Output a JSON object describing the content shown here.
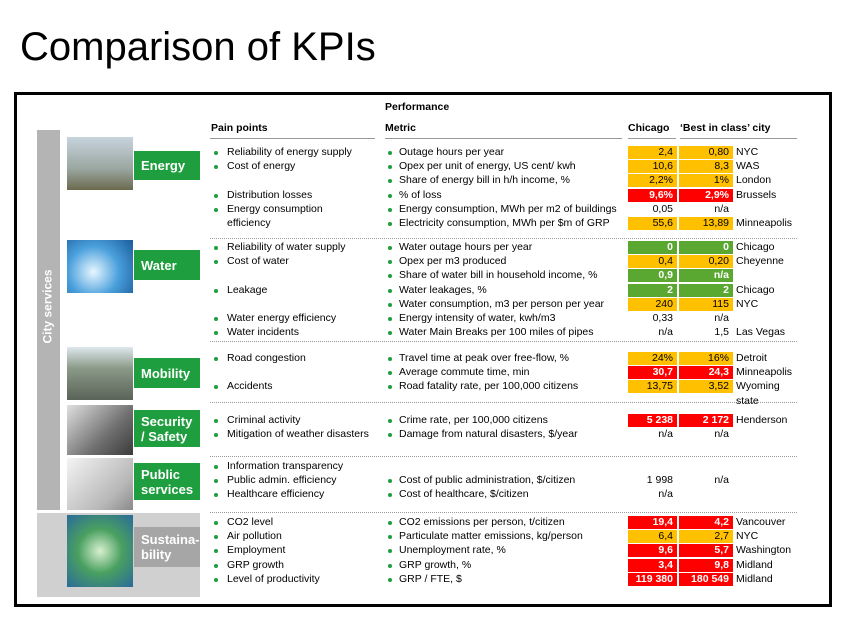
{
  "title": "Comparison of KPIs",
  "side_label": "City services",
  "headers": {
    "performance": "Performance",
    "pain_points": "Pain points",
    "metric": "Metric",
    "chicago": "Chicago",
    "best": "‘Best in class’ city"
  },
  "sections": [
    {
      "label": [
        "Energy"
      ],
      "color": "#1e9e3e",
      "rows": [
        {
          "pain": "Reliability of energy supply",
          "metric": "Outage hours per year",
          "chicago": "2,4",
          "best": "0,80",
          "city": "NYC",
          "chicago_fill": "#ffc000",
          "best_fill": "#ffc000"
        },
        {
          "pain": "Cost of energy",
          "metric": "Opex per unit of energy, US cent/ kwh",
          "chicago": "10,6",
          "best": "8,3",
          "city": "WAS",
          "chicago_fill": "#ffc000",
          "best_fill": "#ffc000"
        },
        {
          "metric": "Share of energy bill in h/h income, %",
          "chicago": "2,2%",
          "best": "1%",
          "city": "London",
          "chicago_fill": "#ffc000",
          "best_fill": "#ffc000"
        },
        {
          "pain": "Distribution losses",
          "metric": "% of loss",
          "chicago": "9,6%",
          "best": "2,9%",
          "city": "Brussels",
          "chicago_fill": "#ff0000",
          "best_fill": "#ff0000"
        },
        {
          "pain": [
            "Energy consumption",
            "efficiency"
          ],
          "metric": "Energy consumption, MWh per m2 of buildings",
          "chicago": "0,05",
          "best": "n/a"
        },
        {
          "metric": "Electricity consumption, MWh per $m of GRP",
          "chicago": "55,6",
          "best": "13,89",
          "city": "Minneapolis",
          "chicago_fill": "#ffc000",
          "best_fill": "#ffc000"
        }
      ]
    },
    {
      "label": [
        "Water"
      ],
      "color": "#1e9e3e",
      "rows": [
        {
          "pain": "Reliability of water supply",
          "metric": "Water outage hours per year",
          "chicago": "0",
          "best": "0",
          "city": "Chicago",
          "chicago_fill": "#5aa832",
          "best_fill": "#5aa832"
        },
        {
          "pain": "Cost of water",
          "metric": "Opex per m3 produced",
          "chicago": "0,4",
          "best": "0,20",
          "city": "Cheyenne",
          "chicago_fill": "#ffc000",
          "best_fill": "#ffc000"
        },
        {
          "metric": "Share of water bill in household income, %",
          "chicago": "0,9",
          "best": "n/a",
          "chicago_fill": "#5aa832",
          "best_fill": "#5aa832"
        },
        {
          "pain": "Leakage",
          "metric": "Water leakages, %",
          "chicago": "2",
          "best": "2",
          "city": "Chicago",
          "chicago_fill": "#5aa832",
          "best_fill": "#5aa832"
        },
        {
          "metric": "Water consumption, m3 per person per year",
          "chicago": "240",
          "best": "115",
          "city": "NYC",
          "chicago_fill": "#ffc000",
          "best_fill": "#ffc000"
        },
        {
          "pain": "Water energy efficiency",
          "metric": "Energy intensity of water, kwh/m3",
          "chicago": "0,33",
          "best": "n/a"
        },
        {
          "pain": "Water incidents",
          "metric": "Water Main Breaks per 100 miles of pipes",
          "chicago": "n/a",
          "best": "1,5",
          "city": "Las Vegas"
        }
      ]
    },
    {
      "label": [
        "Mobility"
      ],
      "color": "#1e9e3e",
      "rows": [
        {
          "pain": "Road congestion",
          "metric": "Travel time at peak over free-flow, %",
          "chicago": "24%",
          "best": "16%",
          "city": "Detroit",
          "chicago_fill": "#ffc000",
          "best_fill": "#ffc000"
        },
        {
          "metric": "Average commute time, min",
          "chicago": "30,7",
          "best": "24,3",
          "city": "Minneapolis",
          "chicago_fill": "#ff0000",
          "best_fill": "#ff0000"
        },
        {
          "pain": "Accidents",
          "metric": "Road fatality rate, per 100,000 citizens",
          "chicago": "13,75",
          "best": "3,52",
          "city": [
            "Wyoming",
            "state"
          ],
          "chicago_fill": "#ffc000",
          "best_fill": "#ffc000"
        }
      ]
    },
    {
      "label": [
        "Security",
        "/ Safety"
      ],
      "color": "#1e9e3e",
      "rows": [
        {
          "pain": "Criminal activity",
          "metric": "Crime rate, per 100,000 citizens",
          "chicago": "5 238",
          "best": "2 172",
          "city": "Henderson",
          "chicago_fill": "#ff0000",
          "best_fill": "#ff0000"
        },
        {
          "pain": "Mitigation of weather disasters",
          "metric": "Damage from natural disasters, $/year",
          "chicago": "n/a",
          "best": "n/a"
        }
      ]
    },
    {
      "label": [
        "Public",
        "services"
      ],
      "color": "#1e9e3e",
      "rows": [
        {
          "pain": "Information transparency"
        },
        {
          "pain": "Public admin.  efficiency",
          "metric": "Cost of public administration, $/citizen",
          "chicago": "1 998",
          "best": "n/a"
        },
        {
          "pain": "Healthcare efficiency",
          "metric": "Cost of healthcare, $/citizen",
          "chicago": "n/a"
        }
      ]
    },
    {
      "label": [
        "Sustaina-",
        "bility"
      ],
      "color": "#a6a6a6",
      "rows": [
        {
          "pain": "CO2 level",
          "metric": "CO2 emissions per person, t/citizen",
          "chicago": "19,4",
          "best": "4,2",
          "city": "Vancouver",
          "chicago_fill": "#ff0000",
          "best_fill": "#ff0000"
        },
        {
          "pain": "Air pollution",
          "metric": "Particulate matter emissions, kg/person",
          "chicago": "6,4",
          "best": "2,7",
          "city": "NYC",
          "chicago_fill": "#ffc000",
          "best_fill": "#ffc000"
        },
        {
          "pain": "Employment",
          "metric": "Unemployment rate, %",
          "chicago": "9,6",
          "best": "5,7",
          "city": "Washington",
          "chicago_fill": "#ff0000",
          "best_fill": "#ff0000"
        },
        {
          "pain": "GRP growth",
          "metric": "GRP growth, %",
          "chicago": "3,4",
          "best": "9,8",
          "city": "Midland",
          "chicago_fill": "#ff0000",
          "best_fill": "#ff0000"
        },
        {
          "pain": "Level of productivity",
          "metric": "GRP / FTE, $",
          "chicago": "119 380",
          "best": "180 549",
          "city": "Midland",
          "chicago_fill": "#ff0000",
          "best_fill": "#ff0000"
        }
      ]
    }
  ]
}
